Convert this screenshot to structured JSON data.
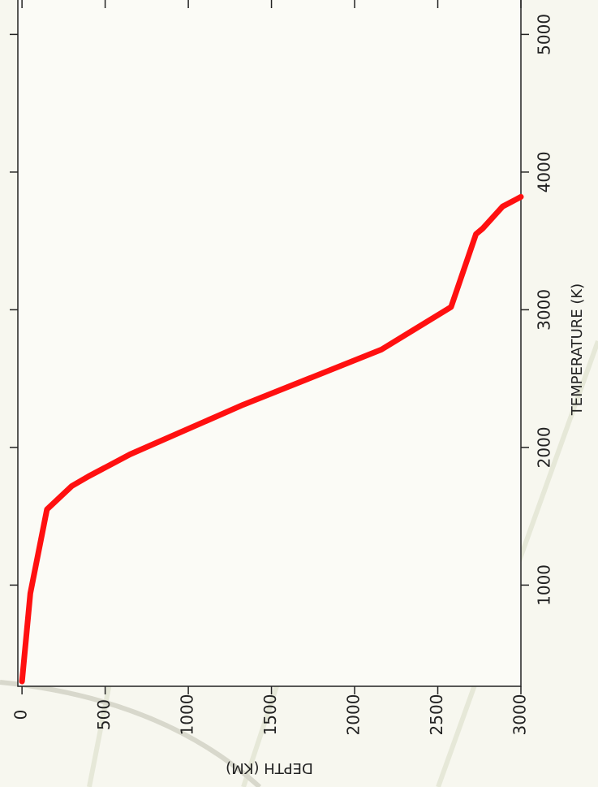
{
  "chart_data": {
    "type": "line",
    "x_label": "DEPTH (KM)",
    "y_label": "TEMPERATURE (K)",
    "x": [
      0,
      50,
      150,
      300,
      400,
      650,
      1330,
      2160,
      2580,
      2730,
      2770,
      2890,
      3000
    ],
    "series": [
      {
        "color": "#ff1010",
        "values": [
          300,
          940,
          1550,
          1720,
          1790,
          1950,
          2310,
          2710,
          3020,
          3550,
          3590,
          3750,
          3820
        ]
      }
    ],
    "xlim": [
      -25,
      3000
    ],
    "xticks": [
      0,
      500,
      1000,
      1500,
      2000,
      2500,
      3000
    ],
    "ylim": [
      265,
      5250
    ],
    "yticks": [
      1000,
      2000,
      3000,
      4000,
      5000
    ]
  }
}
